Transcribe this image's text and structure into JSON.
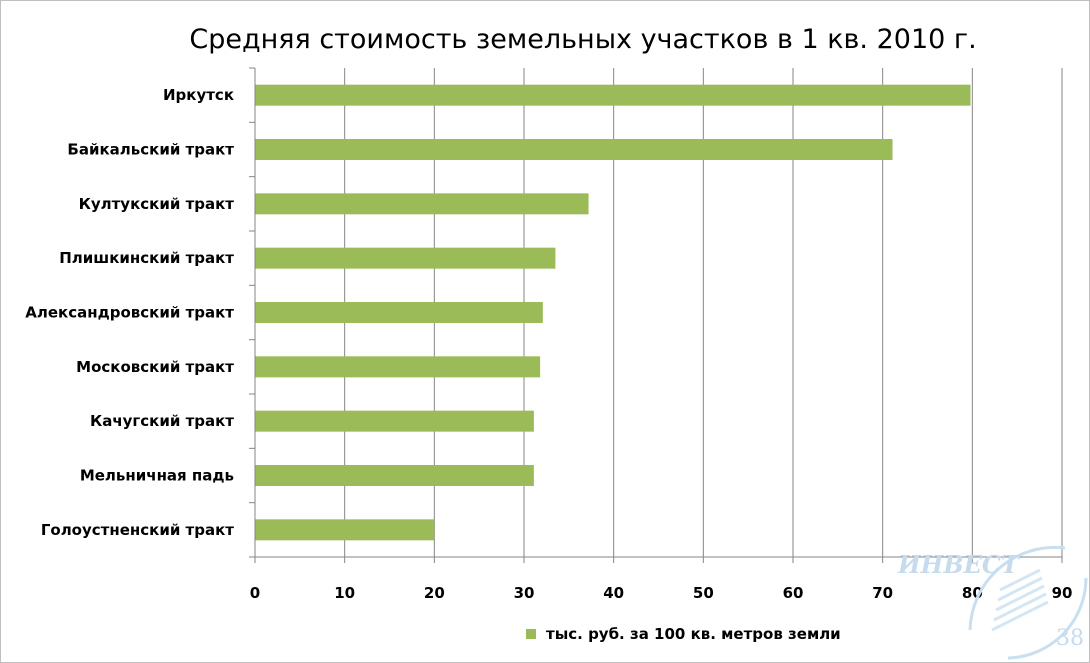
{
  "colors": {
    "bar": "#9bbb59",
    "grid": "#868686",
    "axis": "#868686"
  },
  "chart_data": {
    "type": "bar",
    "orientation": "horizontal",
    "title": "Средняя стоимость земельных участков в 1 кв. 2010 г.",
    "categories": [
      "Иркутск",
      "Байкальский тракт",
      "Култукский тракт",
      "Плишкинский тракт",
      "Александровский тракт",
      "Московский тракт",
      "Качугский тракт",
      "Мельничная падь",
      "Голоустненский тракт"
    ],
    "series": [
      {
        "name": "тыс. руб. за 100 кв. метров земли",
        "values": [
          79.8,
          71.1,
          37.2,
          33.5,
          32.1,
          31.8,
          31.1,
          31.1,
          20.0
        ]
      }
    ],
    "xlim": [
      0,
      90
    ],
    "xticks": [
      0,
      10,
      20,
      30,
      40,
      50,
      60,
      70,
      80,
      90
    ],
    "grid": true,
    "legend": "bottom"
  },
  "watermark": {
    "text": "ИНВЕСТ",
    "number": "38"
  }
}
